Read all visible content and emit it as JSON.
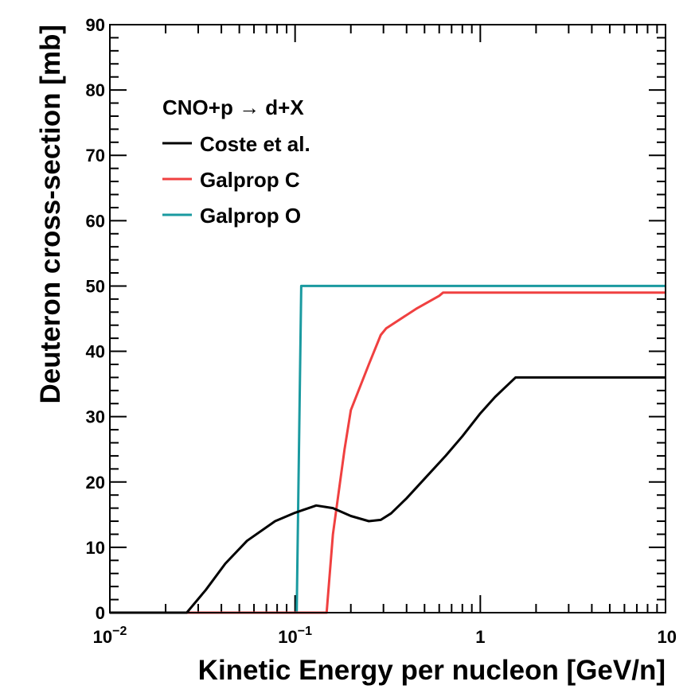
{
  "chart_data": {
    "type": "line",
    "xscale": "log",
    "xlim": [
      0.01,
      10
    ],
    "ylim": [
      0,
      90
    ],
    "xlabel": "Kinetic Energy per nucleon [GeV/n]",
    "ylabel": "Deuteron cross-section [mb]",
    "xticks": [
      {
        "value": 0.01,
        "base": "10",
        "exp": "−2"
      },
      {
        "value": 0.1,
        "base": "10",
        "exp": "−1"
      },
      {
        "value": 1,
        "base": "1",
        "exp": ""
      },
      {
        "value": 10,
        "base": "10",
        "exp": ""
      }
    ],
    "yticks": [
      "0",
      "10",
      "20",
      "30",
      "40",
      "50",
      "60",
      "70",
      "80",
      "90"
    ],
    "legend": {
      "title": "CNO+p  → d+X",
      "placement": "top-left"
    },
    "series": [
      {
        "name": "Coste et al.",
        "color": "#000000",
        "x": [
          0.01,
          0.026,
          0.033,
          0.042,
          0.055,
          0.078,
          0.1,
          0.13,
          0.16,
          0.2,
          0.25,
          0.29,
          0.33,
          0.4,
          0.5,
          0.65,
          0.8,
          1.0,
          1.2,
          1.55,
          3.0,
          10.0
        ],
        "y": [
          0,
          0,
          3.5,
          7.5,
          11,
          14,
          15.3,
          16.4,
          16.0,
          14.8,
          14.0,
          14.2,
          15.2,
          17.5,
          20.5,
          24.0,
          27.0,
          30.5,
          33.0,
          36.0,
          36.0,
          36.0
        ]
      },
      {
        "name": "Galprop C",
        "color": "#f04040",
        "x": [
          0.01,
          0.148,
          0.16,
          0.185,
          0.2,
          0.25,
          0.29,
          0.31,
          0.45,
          0.6,
          0.63,
          10.0
        ],
        "y": [
          0,
          0,
          12.0,
          25.0,
          31.0,
          38.0,
          42.5,
          43.5,
          46.5,
          48.5,
          49.0,
          49.0
        ]
      },
      {
        "name": "Galprop O",
        "color": "#1a9aa0",
        "x": [
          0.01,
          0.102,
          0.108,
          10.0
        ],
        "y": [
          0,
          0,
          50.0,
          50.0
        ]
      }
    ]
  }
}
